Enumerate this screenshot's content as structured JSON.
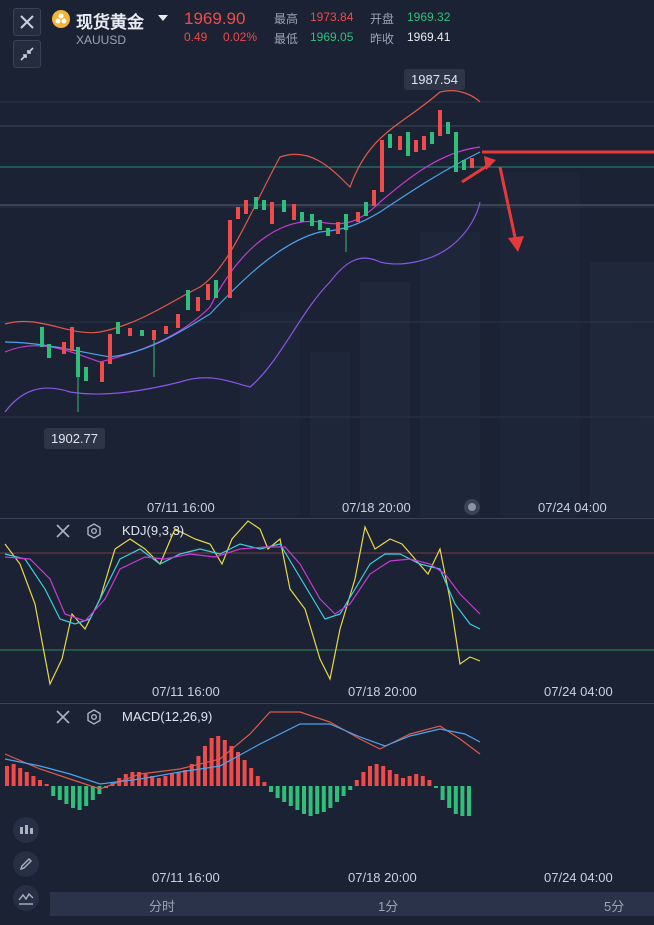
{
  "header": {
    "title": "现货黄金",
    "symbol": "XAUUSD",
    "price": "1969.90",
    "change": "0.49",
    "change_pct": "0.02%",
    "high_label": "最高",
    "high_value": "1973.84",
    "low_label": "最低",
    "low_value": "1969.05",
    "open_label": "开盘",
    "open_value": "1969.32",
    "prev_close_label": "昨收",
    "prev_close_value": "1969.41"
  },
  "main_chart": {
    "max_label": "1987.54",
    "min_label": "1902.77",
    "x_ticks": [
      "07/11 16:00",
      "07/18 20:00",
      "07/24 04:00"
    ]
  },
  "kdj": {
    "title": "KDJ(9,3,3)",
    "x_ticks": [
      "07/11 16:00",
      "07/18 20:00",
      "07/24 04:00"
    ]
  },
  "macd": {
    "title": "MACD(12,26,9)",
    "x_ticks": [
      "07/11 16:00",
      "07/18 20:00",
      "07/24 04:00"
    ]
  },
  "tabs": [
    "分时",
    "1分",
    "5分"
  ],
  "colors": {
    "up": "#ef4b4b",
    "down": "#2fbf7a",
    "background": "#1b2233",
    "ma_fast": "#c73ad6",
    "ma_slow": "#4aa3f0",
    "boll": "#8a55e8"
  }
}
